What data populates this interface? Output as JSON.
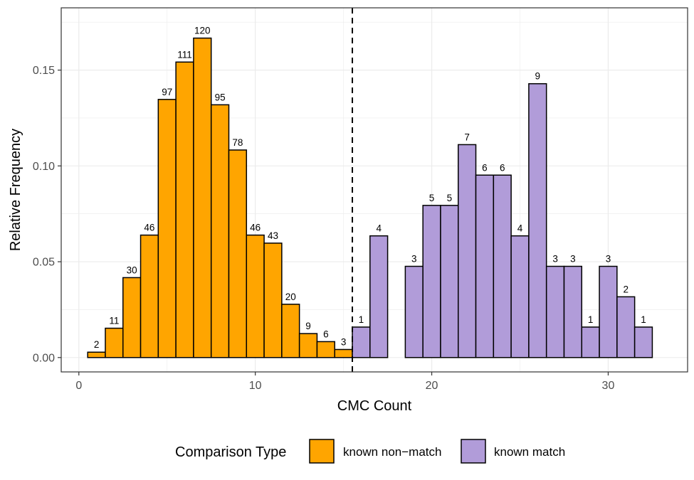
{
  "chart_data": {
    "type": "bar",
    "xlabel": "CMC Count",
    "ylabel": "Relative Frequency",
    "xlim": [
      -1,
      34.5
    ],
    "ylim": [
      -0.0075,
      0.1825
    ],
    "x_ticks": [
      0,
      10,
      20,
      30
    ],
    "x_tick_labels": [
      "0",
      "10",
      "20",
      "30"
    ],
    "y_ticks": [
      0.0,
      0.05,
      0.1,
      0.15
    ],
    "y_tick_labels": [
      "0.00",
      "0.05",
      "0.10",
      "0.15"
    ],
    "grid": true,
    "threshold_line": {
      "x": 15.5,
      "style": "dashed"
    },
    "legend": {
      "title": "Comparison Type",
      "position": "bottom",
      "entries": [
        {
          "name": "known non−match",
          "color": "#FFA500"
        },
        {
          "name": "known match",
          "color": "#B19CD9"
        }
      ]
    },
    "series": [
      {
        "name": "known non−match",
        "color": "#FFA500",
        "x": [
          1,
          2,
          3,
          4,
          5,
          6,
          7,
          8,
          9,
          10,
          11,
          12,
          13,
          14,
          15
        ],
        "values": [
          0.0028,
          0.0153,
          0.0417,
          0.0639,
          0.1347,
          0.1542,
          0.1667,
          0.1319,
          0.1083,
          0.0639,
          0.0597,
          0.0278,
          0.0125,
          0.0083,
          0.0042
        ],
        "labels": [
          "2",
          "11",
          "30",
          "46",
          "97",
          "111",
          "120",
          "95",
          "78",
          "46",
          "43",
          "20",
          "9",
          "6",
          "3"
        ]
      },
      {
        "name": "known match",
        "color": "#B19CD9",
        "x": [
          16,
          17,
          19,
          20,
          21,
          22,
          23,
          24,
          25,
          26,
          27,
          28,
          29,
          30,
          31,
          32
        ],
        "values": [
          0.0159,
          0.0635,
          0.0476,
          0.0794,
          0.0794,
          0.1111,
          0.0952,
          0.0952,
          0.0635,
          0.1429,
          0.0476,
          0.0476,
          0.0159,
          0.0476,
          0.0317,
          0.0159
        ],
        "labels": [
          "1",
          "4",
          "3",
          "5",
          "5",
          "7",
          "6",
          "6",
          "4",
          "9",
          "3",
          "3",
          "1",
          "3",
          "2",
          "1"
        ]
      }
    ]
  }
}
